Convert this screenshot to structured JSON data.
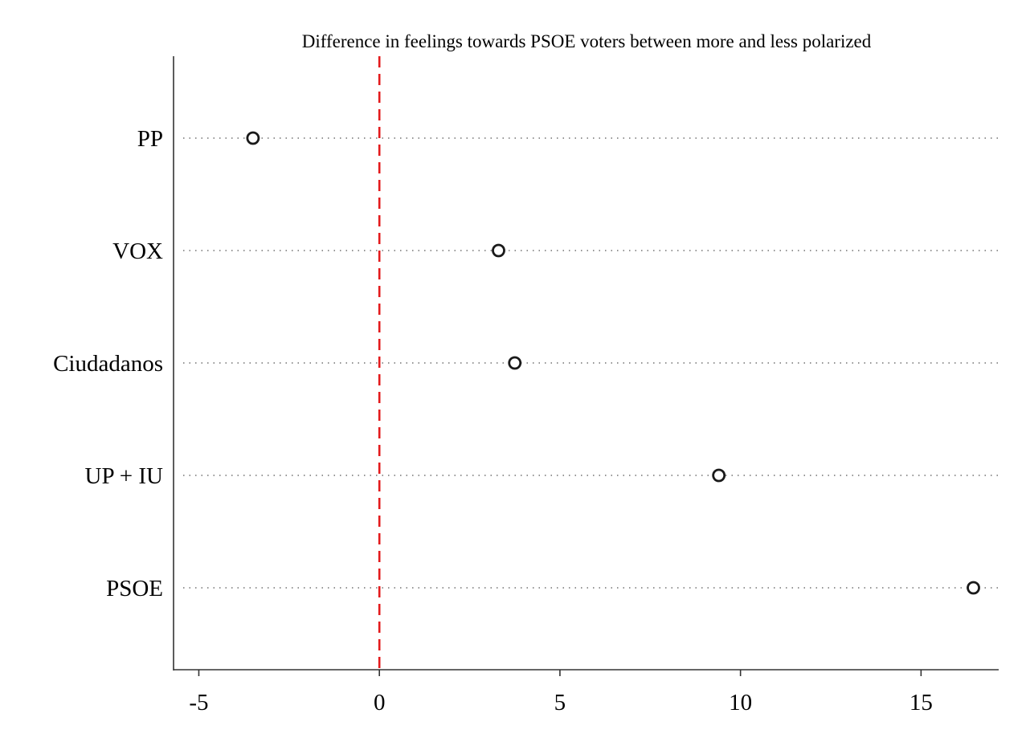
{
  "chart_data": {
    "type": "scatter",
    "title": "Difference in feelings towards PSOE voters between more and less polarized",
    "xlabel": "",
    "ylabel": "",
    "categories": [
      "PP",
      "VOX",
      "Ciudadanos",
      "UP + IU",
      "PSOE"
    ],
    "values": [
      -3.5,
      3.3,
      3.75,
      9.4,
      16.45
    ],
    "xlim": [
      -5.7,
      17.15
    ],
    "xticks": [
      -5,
      0,
      5,
      10,
      15
    ],
    "xtick_labels": [
      "-5",
      "0",
      "5",
      "10",
      "15"
    ],
    "reference_line": {
      "x": 0,
      "style": "dashed",
      "color": "#e31a1c"
    },
    "grid": "dotted horizontal guide lines per category",
    "colors": {
      "marker": "#1a1a1a",
      "axis": "#333333",
      "guide": "#555555"
    }
  }
}
